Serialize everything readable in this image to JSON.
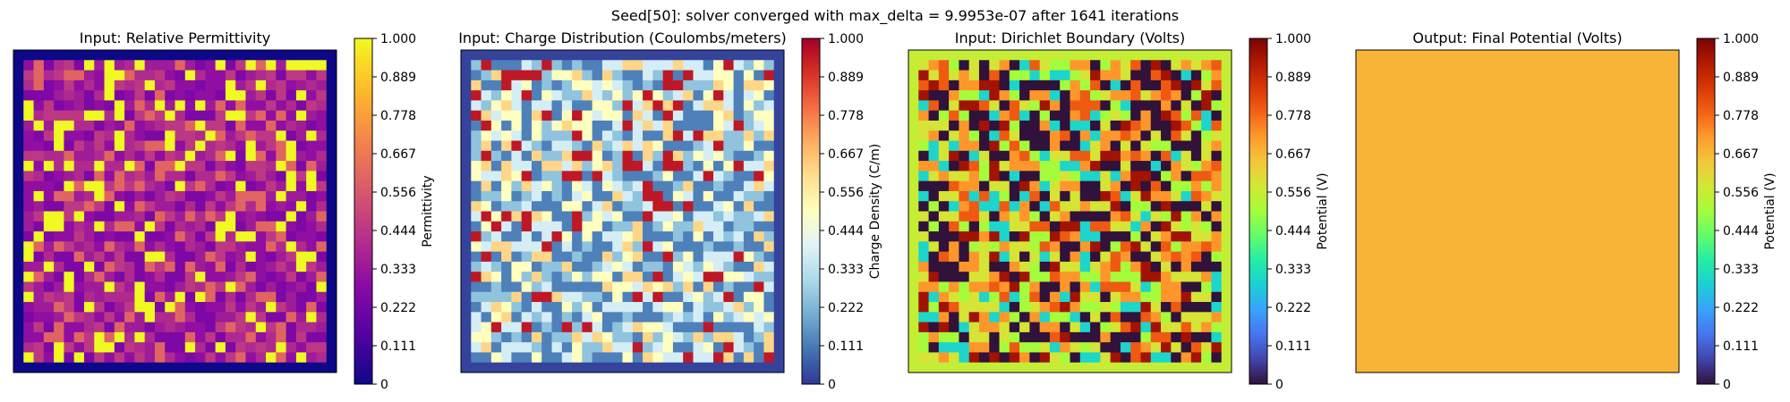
{
  "suptitle": "Seed[50]: solver converged with max_delta = 9.9953e-07 after 1641 iterations",
  "tick_labels": [
    "0",
    "0.111",
    "0.222",
    "0.333",
    "0.444",
    "0.556",
    "0.667",
    "0.778",
    "0.889",
    "1.000"
  ],
  "chart_data": [
    {
      "type": "heatmap",
      "title": "Input: Relative Permittivity",
      "colorbar_label": "Permittivity",
      "colormap": "plasma",
      "clim": [
        0,
        1
      ],
      "grid_size": [
        32,
        32
      ],
      "border_value": 0,
      "cell_values": [
        0.25,
        0.3,
        0.35,
        0.4,
        0.45,
        0.6,
        1.0
      ],
      "cell_weights": [
        0.18,
        0.16,
        0.14,
        0.14,
        0.14,
        0.1,
        0.14
      ],
      "seed": 50,
      "colorbar_colors": [
        "#0d0887",
        "#5302a3",
        "#8b0aa5",
        "#b83289",
        "#db5c68",
        "#f48849",
        "#febc2a",
        "#f0f921"
      ]
    },
    {
      "type": "heatmap",
      "title": "Input: Charge Distribution (Coulombs/meters)",
      "colorbar_label": "Charge Density (C/m)",
      "colormap": "RdYlBu_r",
      "clim": [
        0,
        1
      ],
      "grid_size": [
        32,
        32
      ],
      "border_value": 0.02,
      "cell_values": [
        0.12,
        0.25,
        0.38,
        0.5,
        0.62,
        0.95
      ],
      "cell_weights": [
        0.26,
        0.2,
        0.18,
        0.14,
        0.12,
        0.1
      ],
      "seed": 151,
      "colorbar_colors": [
        "#313695",
        "#4575b4",
        "#74add1",
        "#abd9e9",
        "#e0f3f8",
        "#ffffbf",
        "#fee090",
        "#fdae61",
        "#f46d43",
        "#d73027",
        "#a50026"
      ]
    },
    {
      "type": "heatmap",
      "title": "Input: Dirichlet Boundary (Volts)",
      "colorbar_label": "Potential (V)",
      "colormap": "turbo",
      "clim": [
        0,
        1
      ],
      "grid_size": [
        32,
        32
      ],
      "border_value": 0.55,
      "cell_values": [
        0.0,
        0.3,
        0.5,
        0.58,
        0.72,
        0.8,
        0.95
      ],
      "cell_weights": [
        0.26,
        0.1,
        0.12,
        0.16,
        0.14,
        0.12,
        0.1
      ],
      "seed": 777,
      "colorbar_colors": [
        "#30123b",
        "#4145ab",
        "#4675ed",
        "#39a2fc",
        "#1bcfd4",
        "#24eca6",
        "#61fc6c",
        "#a4fc3b",
        "#d1e834",
        "#f3c63a",
        "#fe9b2d",
        "#f36315",
        "#d93806",
        "#b11901",
        "#7a0403"
      ]
    },
    {
      "type": "heatmap",
      "title": "Output: Final Potential (Volts)",
      "colorbar_label": "Potential (V)",
      "colormap": "turbo",
      "clim": [
        0,
        1
      ],
      "grid_size": [
        32,
        32
      ],
      "uniform_value": 0.75,
      "uniform_color": "#f7b436",
      "colorbar_colors": [
        "#30123b",
        "#4145ab",
        "#4675ed",
        "#39a2fc",
        "#1bcfd4",
        "#24eca6",
        "#61fc6c",
        "#a4fc3b",
        "#d1e834",
        "#f3c63a",
        "#fe9b2d",
        "#f36315",
        "#d93806",
        "#b11901",
        "#7a0403"
      ]
    }
  ]
}
